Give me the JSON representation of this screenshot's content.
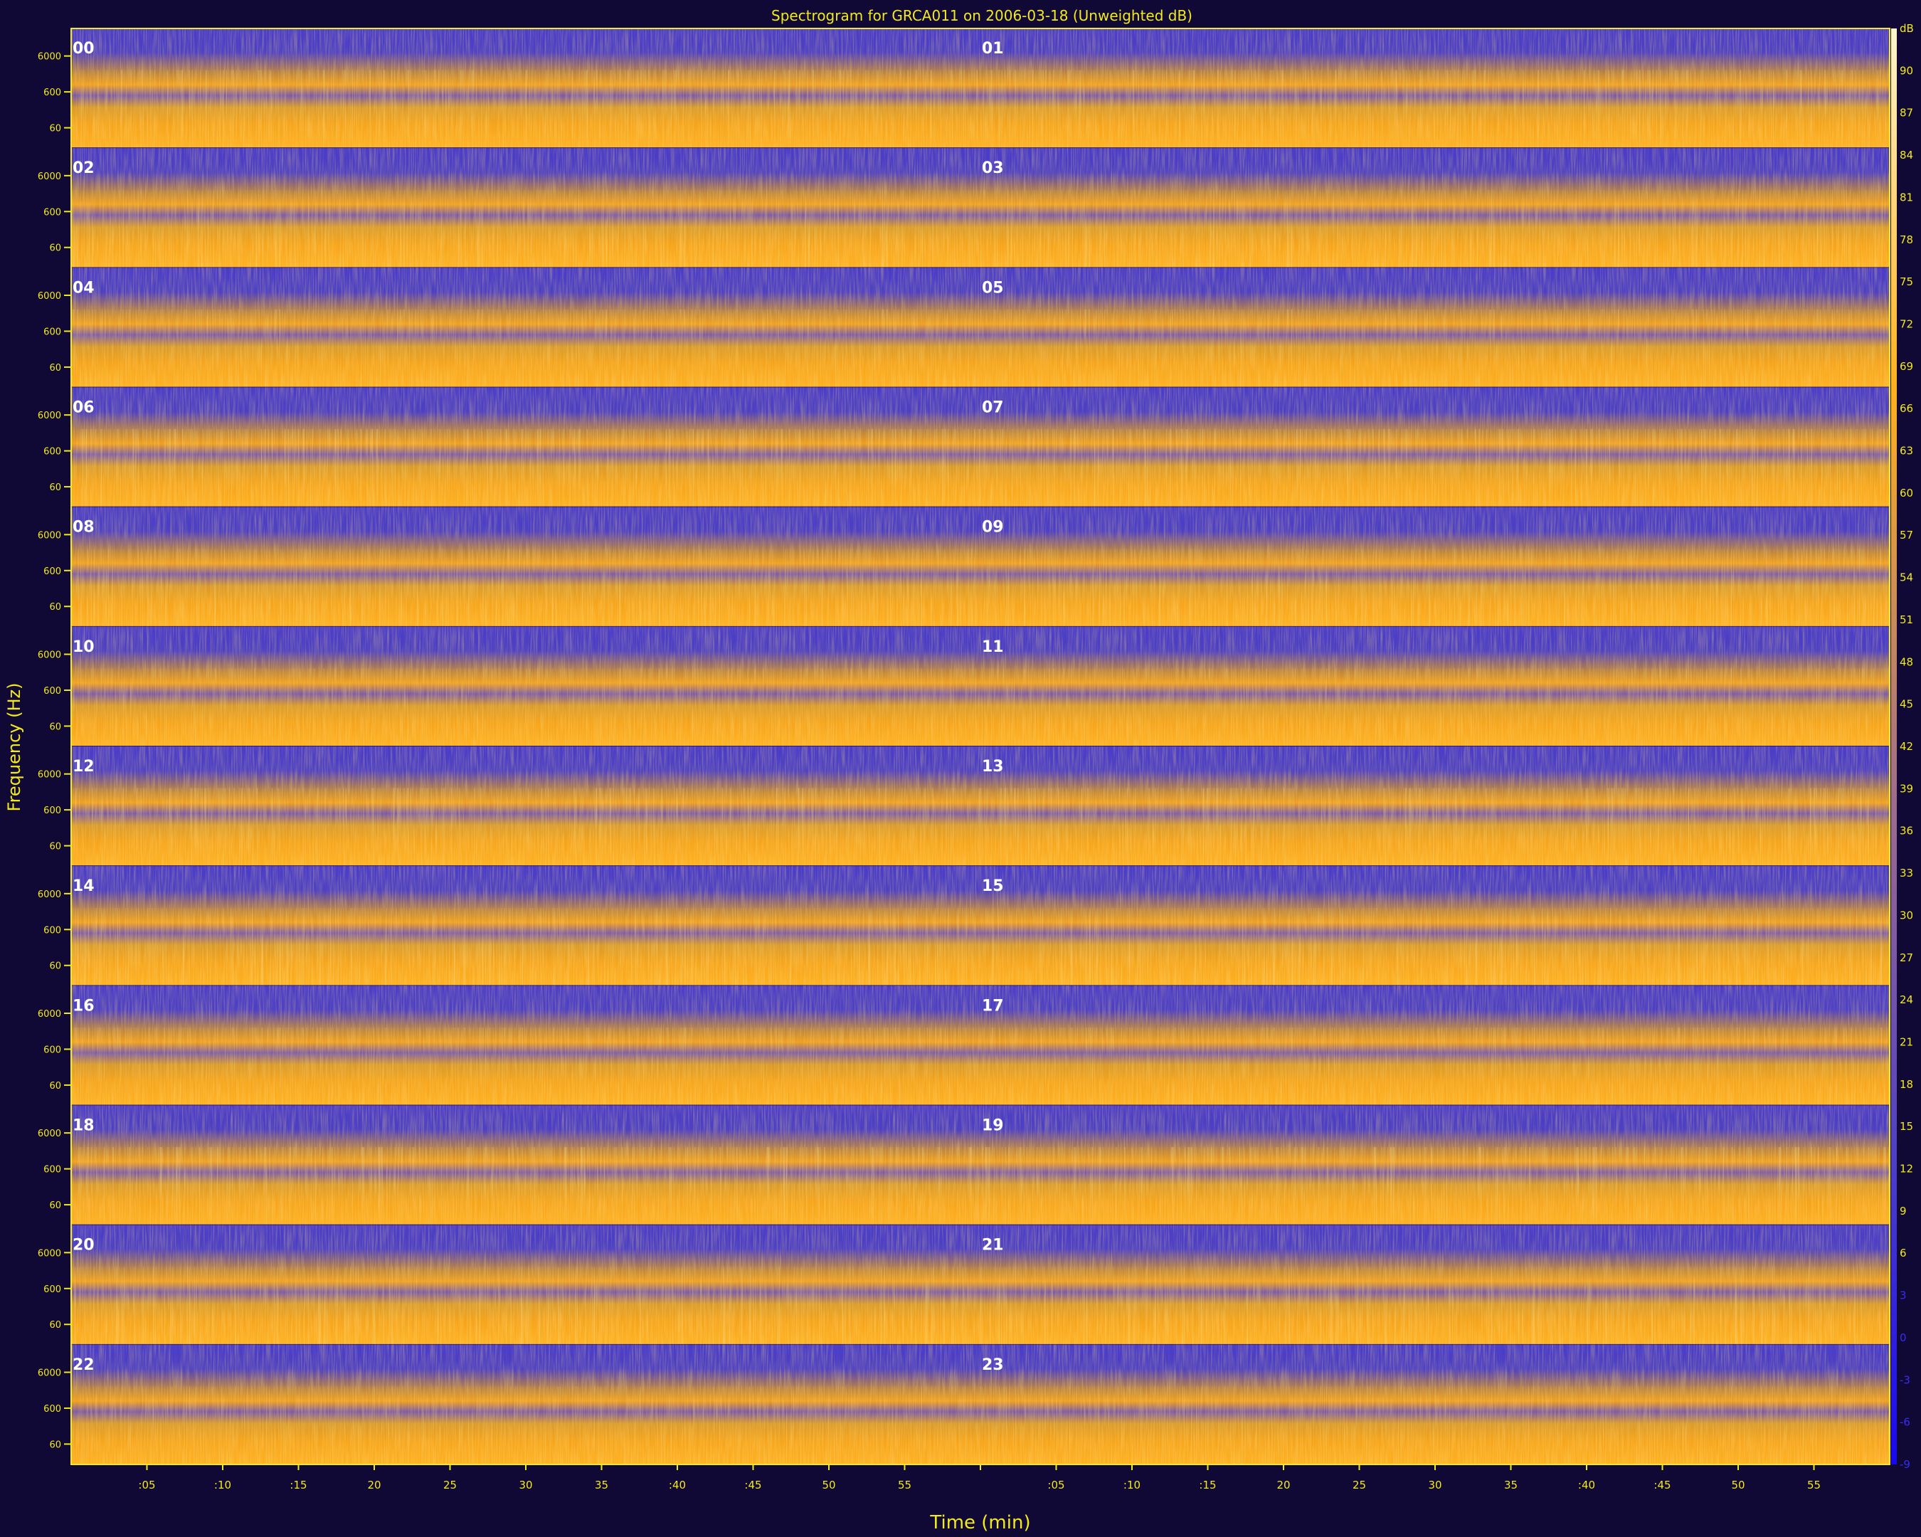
{
  "title": "Spectrogram for  GRCA011 on 2006-03-18 (Unweighted dB)",
  "chart_data": {
    "type": "heatmap",
    "title": "Spectrogram for  GRCA011 on 2006-03-18 (Unweighted dB)",
    "xlabel": "Time (min)",
    "ylabel": "Frequency (Hz)",
    "rows": [
      "00|01",
      "02|03",
      "04|05",
      "06|07",
      "08|09",
      "10|11",
      "12|13",
      "14|15",
      "16|17",
      "18|19",
      "20|21",
      "22|23"
    ],
    "hour_labels": [
      "00",
      "01",
      "02",
      "03",
      "04",
      "05",
      "06",
      "07",
      "08",
      "09",
      "10",
      "11",
      "12",
      "13",
      "14",
      "15",
      "16",
      "17",
      "18",
      "19",
      "20",
      "21",
      "22",
      "23"
    ],
    "x_tick_labels": [
      ":05",
      ":10",
      ":15",
      "20",
      "25",
      "30",
      "35",
      ":40",
      ":45",
      "50",
      "55",
      "",
      ":05",
      ":10",
      ":15",
      "20",
      "25",
      "30",
      "35",
      ":40",
      ":45",
      "50",
      "55"
    ],
    "y_tick_labels": [
      "6000",
      "600",
      "60"
    ],
    "colorbar_label": "dB",
    "colorbar_ticks": [
      "dB",
      "90",
      "87",
      "84",
      "81",
      "78",
      "75",
      "72",
      "69",
      "66",
      "63",
      "60",
      "57",
      "54",
      "51",
      "48",
      "45",
      "42",
      "39",
      "36",
      "33",
      "30",
      "27",
      "24",
      "21",
      "18",
      "15",
      "12",
      "9",
      "6",
      "3",
      "0",
      "-3",
      "-6",
      "-9"
    ],
    "colormap": {
      "low": "#1c10e8",
      "mid": "#5a4cc4",
      "high": "#ffa318",
      "peak": "#fff2c0"
    },
    "frame_color": "#f2ea1c",
    "background": "#100835"
  }
}
